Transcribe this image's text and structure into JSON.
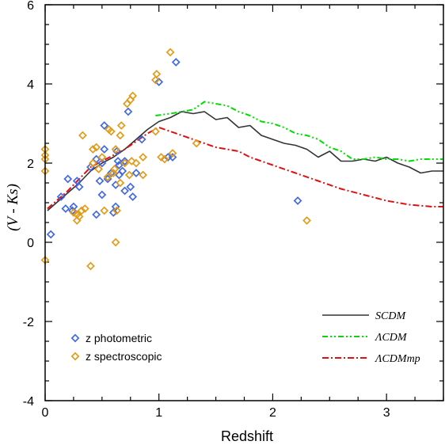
{
  "chart_data": {
    "type": "scatter",
    "xlabel": "Redshift",
    "ylabel": "(V - Ks)",
    "xlim": [
      0,
      3.5
    ],
    "ylim": [
      -4,
      6
    ],
    "x_ticks": [
      0,
      1,
      2,
      3
    ],
    "x_tick_labels": [
      "0",
      "1",
      "2",
      "3"
    ],
    "y_ticks": [
      -4,
      -2,
      0,
      2,
      4,
      6
    ],
    "y_tick_labels": [
      "-4",
      "-2",
      "0",
      "2",
      "4",
      "6"
    ],
    "grid": false,
    "legend_points_position": "bottom-left",
    "legend_lines_position": "bottom-right",
    "series": [
      {
        "name": "z photometric",
        "kind": "scatter",
        "color": "#4169E1",
        "points": [
          [
            0.05,
            0.2
          ],
          [
            0.14,
            1.15
          ],
          [
            0.18,
            0.85
          ],
          [
            0.2,
            1.6
          ],
          [
            0.24,
            0.8
          ],
          [
            0.25,
            0.9
          ],
          [
            0.28,
            1.55
          ],
          [
            0.3,
            1.4
          ],
          [
            0.4,
            1.9
          ],
          [
            0.45,
            2.1
          ],
          [
            0.45,
            0.7
          ],
          [
            0.48,
            1.55
          ],
          [
            0.5,
            2.0
          ],
          [
            0.5,
            1.2
          ],
          [
            0.52,
            2.35
          ],
          [
            0.52,
            2.95
          ],
          [
            0.55,
            1.6
          ],
          [
            0.58,
            1.75
          ],
          [
            0.6,
            0.75
          ],
          [
            0.62,
            1.45
          ],
          [
            0.62,
            0.9
          ],
          [
            0.63,
            2.3
          ],
          [
            0.64,
            2.05
          ],
          [
            0.65,
            1.7
          ],
          [
            0.65,
            1.95
          ],
          [
            0.68,
            1.8
          ],
          [
            0.7,
            1.3
          ],
          [
            0.7,
            2.05
          ],
          [
            0.73,
            3.3
          ],
          [
            0.75,
            1.4
          ],
          [
            0.77,
            1.15
          ],
          [
            0.8,
            1.75
          ],
          [
            0.85,
            2.6
          ],
          [
            1.0,
            4.05
          ],
          [
            1.08,
            2.15
          ],
          [
            1.12,
            2.15
          ],
          [
            1.15,
            4.55
          ],
          [
            2.22,
            1.05
          ]
        ]
      },
      {
        "name": "z spectroscopic",
        "kind": "scatter",
        "color": "#E39B17",
        "points": [
          [
            0.0,
            -0.45
          ],
          [
            0.0,
            2.35
          ],
          [
            0.0,
            2.2
          ],
          [
            0.0,
            2.1
          ],
          [
            0.0,
            1.8
          ],
          [
            0.25,
            0.75
          ],
          [
            0.28,
            0.55
          ],
          [
            0.28,
            0.7
          ],
          [
            0.3,
            0.65
          ],
          [
            0.32,
            0.8
          ],
          [
            0.33,
            2.7
          ],
          [
            0.35,
            0.85
          ],
          [
            0.4,
            -0.6
          ],
          [
            0.42,
            2.35
          ],
          [
            0.42,
            2.0
          ],
          [
            0.45,
            2.4
          ],
          [
            0.47,
            1.85
          ],
          [
            0.5,
            2.15
          ],
          [
            0.52,
            0.8
          ],
          [
            0.55,
            1.65
          ],
          [
            0.56,
            2.85
          ],
          [
            0.58,
            2.8
          ],
          [
            0.6,
            1.75
          ],
          [
            0.61,
            1.85
          ],
          [
            0.62,
            0.0
          ],
          [
            0.62,
            2.35
          ],
          [
            0.63,
            0.8
          ],
          [
            0.66,
            1.5
          ],
          [
            0.66,
            2.7
          ],
          [
            0.67,
            2.95
          ],
          [
            0.7,
            2.0
          ],
          [
            0.72,
            3.5
          ],
          [
            0.74,
            1.7
          ],
          [
            0.75,
            3.6
          ],
          [
            0.76,
            2.05
          ],
          [
            0.77,
            3.7
          ],
          [
            0.8,
            2.0
          ],
          [
            0.86,
            1.7
          ],
          [
            0.86,
            2.15
          ],
          [
            0.97,
            4.1
          ],
          [
            0.97,
            2.8
          ],
          [
            0.98,
            4.25
          ],
          [
            1.02,
            2.15
          ],
          [
            1.05,
            2.1
          ],
          [
            1.1,
            4.8
          ],
          [
            1.12,
            2.25
          ],
          [
            1.33,
            2.5
          ],
          [
            2.3,
            0.55
          ]
        ]
      },
      {
        "name": "SCDM",
        "kind": "line",
        "color": "#333333",
        "style": "solid",
        "points": [
          [
            0.02,
            0.8
          ],
          [
            0.1,
            1.0
          ],
          [
            0.2,
            1.25
          ],
          [
            0.3,
            1.5
          ],
          [
            0.4,
            1.8
          ],
          [
            0.5,
            2.0
          ],
          [
            0.6,
            2.15
          ],
          [
            0.7,
            2.35
          ],
          [
            0.8,
            2.6
          ],
          [
            0.9,
            2.85
          ],
          [
            1.0,
            3.05
          ],
          [
            1.1,
            3.15
          ],
          [
            1.2,
            3.3
          ],
          [
            1.3,
            3.25
          ],
          [
            1.4,
            3.3
          ],
          [
            1.5,
            3.1
          ],
          [
            1.6,
            3.15
          ],
          [
            1.7,
            2.9
          ],
          [
            1.8,
            2.95
          ],
          [
            1.9,
            2.7
          ],
          [
            2.0,
            2.6
          ],
          [
            2.1,
            2.5
          ],
          [
            2.2,
            2.45
          ],
          [
            2.3,
            2.35
          ],
          [
            2.4,
            2.15
          ],
          [
            2.5,
            2.3
          ],
          [
            2.6,
            2.05
          ],
          [
            2.7,
            2.05
          ],
          [
            2.8,
            2.1
          ],
          [
            2.9,
            2.05
          ],
          [
            3.0,
            2.15
          ],
          [
            3.1,
            2.0
          ],
          [
            3.2,
            1.9
          ],
          [
            3.3,
            1.75
          ],
          [
            3.4,
            1.8
          ],
          [
            3.5,
            1.8
          ]
        ]
      },
      {
        "name": "ΛCDM",
        "kind": "line",
        "color": "#00DD00",
        "style": "dash-dot-dot",
        "points": [
          [
            0.97,
            3.2
          ],
          [
            1.1,
            3.25
          ],
          [
            1.2,
            3.3
          ],
          [
            1.3,
            3.35
          ],
          [
            1.4,
            3.55
          ],
          [
            1.5,
            3.5
          ],
          [
            1.6,
            3.45
          ],
          [
            1.7,
            3.3
          ],
          [
            1.8,
            3.2
          ],
          [
            1.9,
            3.05
          ],
          [
            2.0,
            3.0
          ],
          [
            2.1,
            2.9
          ],
          [
            2.2,
            2.75
          ],
          [
            2.3,
            2.7
          ],
          [
            2.4,
            2.6
          ],
          [
            2.5,
            2.4
          ],
          [
            2.6,
            2.3
          ],
          [
            2.7,
            2.1
          ],
          [
            2.8,
            2.1
          ],
          [
            2.9,
            2.15
          ],
          [
            3.0,
            2.1
          ],
          [
            3.1,
            2.1
          ],
          [
            3.2,
            2.05
          ],
          [
            3.3,
            2.1
          ],
          [
            3.4,
            2.1
          ],
          [
            3.5,
            2.1
          ]
        ]
      },
      {
        "name": "ΛCDMmp",
        "kind": "line",
        "color": "#DD1111",
        "style": "dash-dot",
        "points": [
          [
            0.02,
            0.85
          ],
          [
            0.1,
            1.05
          ],
          [
            0.2,
            1.3
          ],
          [
            0.3,
            1.6
          ],
          [
            0.4,
            1.9
          ],
          [
            0.5,
            2.05
          ],
          [
            0.6,
            2.2
          ],
          [
            0.7,
            2.35
          ],
          [
            0.8,
            2.55
          ],
          [
            0.9,
            2.75
          ],
          [
            1.0,
            2.9
          ],
          [
            1.1,
            2.8
          ],
          [
            1.2,
            2.7
          ],
          [
            1.3,
            2.6
          ],
          [
            1.4,
            2.5
          ],
          [
            1.5,
            2.4
          ],
          [
            1.6,
            2.35
          ],
          [
            1.7,
            2.3
          ],
          [
            1.8,
            2.15
          ],
          [
            1.9,
            2.05
          ],
          [
            2.0,
            1.95
          ],
          [
            2.2,
            1.75
          ],
          [
            2.4,
            1.55
          ],
          [
            2.6,
            1.35
          ],
          [
            2.8,
            1.2
          ],
          [
            3.0,
            1.05
          ],
          [
            3.2,
            0.95
          ],
          [
            3.4,
            0.9
          ],
          [
            3.5,
            0.9
          ]
        ]
      }
    ],
    "legend": {
      "points": [
        "z photometric",
        "z spectroscopic"
      ],
      "lines": [
        "SCDM",
        "ΛCDM",
        "ΛCDMmp"
      ]
    }
  }
}
